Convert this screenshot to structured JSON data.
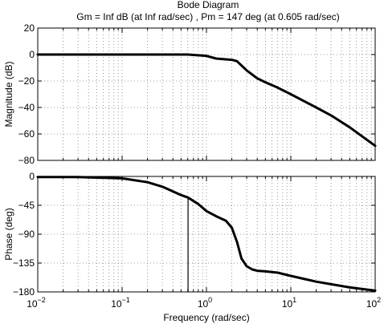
{
  "chart_data": {
    "type": "line",
    "title": "Bode Diagram",
    "subtitle": "Gm = Inf dB (at Inf rad/sec) ,  Pm = 147 deg (at 0.605 rad/sec)",
    "xlabel": "Frequency  (rad/sec)",
    "xscale": "log",
    "xlim": [
      0.01,
      100
    ],
    "xticks": [
      0.01,
      0.1,
      1,
      10,
      100
    ],
    "xtick_labels": [
      {
        "base": "10",
        "exp": "−2"
      },
      {
        "base": "10",
        "exp": "−1"
      },
      {
        "base": "10",
        "exp": "0"
      },
      {
        "base": "10",
        "exp": "1"
      },
      {
        "base": "10",
        "exp": "2"
      }
    ],
    "grid": true,
    "panels": [
      {
        "name": "magnitude",
        "ylabel": "Magnitude (dB)",
        "ylim": [
          -80,
          20
        ],
        "yticks": [
          20,
          0,
          -20,
          -40,
          -60,
          -80
        ],
        "ytick_labels": [
          "20",
          "0",
          "−20",
          "−40",
          "−60",
          "−80"
        ],
        "series": [
          {
            "x": [
              0.01,
              0.1,
              0.3,
              0.6,
              1,
              1.3,
              2,
              2.3,
              3,
              4,
              5,
              7,
              10,
              20,
              30,
              50,
              100
            ],
            "y": [
              0,
              0,
              0,
              0,
              -1,
              -3,
              -4,
              -5,
              -12,
              -18,
              -21,
              -25,
              -30,
              -40,
              -46,
              -55,
              -69
            ]
          }
        ]
      },
      {
        "name": "phase",
        "ylabel": "Phase (deg)",
        "ylim": [
          -180,
          0
        ],
        "yticks": [
          0,
          -45,
          -90,
          -135,
          -180
        ],
        "ytick_labels": [
          "0",
          "−45",
          "−90",
          "−135",
          "−180"
        ],
        "series": [
          {
            "x": [
              0.01,
              0.03,
              0.1,
              0.2,
              0.3,
              0.5,
              0.605,
              0.8,
              1,
              1.3,
              1.7,
              2,
              2.3,
              2.6,
              3,
              3.5,
              4,
              5,
              7,
              10,
              20,
              50,
              100
            ],
            "y": [
              -1,
              -1,
              -3,
              -9,
              -16,
              -29,
              -33,
              -43,
              -54,
              -62,
              -69,
              -80,
              -102,
              -128,
              -140,
              -145,
              -147,
              -148,
              -150,
              -155,
              -164,
              -173,
              -178
            ]
          }
        ],
        "marker_line": {
          "x": 0.605,
          "y_from": -33,
          "y_to": -180
        }
      }
    ]
  }
}
